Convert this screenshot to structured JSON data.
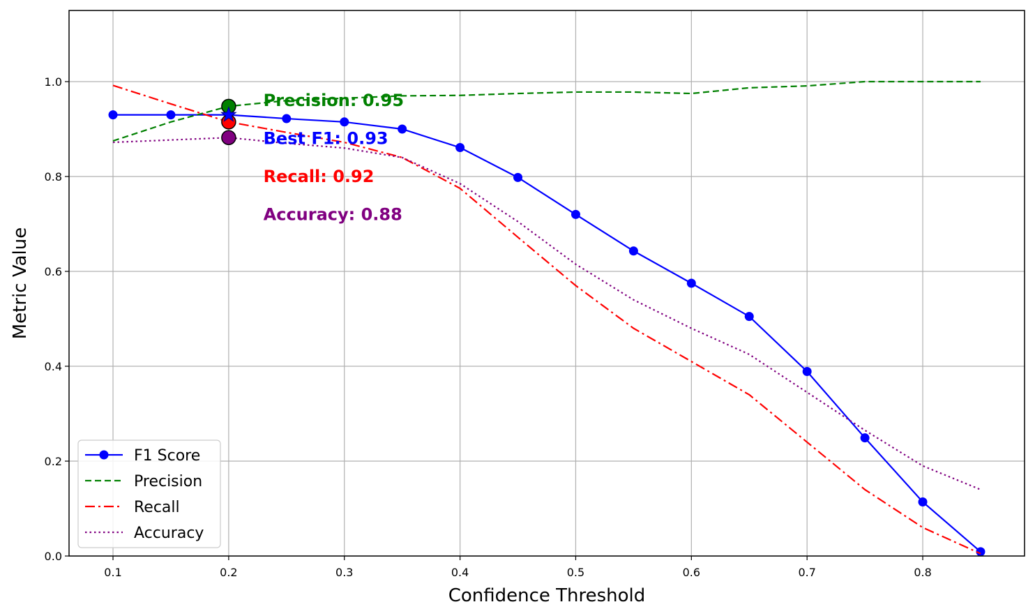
{
  "chart_data": {
    "type": "line",
    "title": "",
    "xlabel": "Confidence Threshold",
    "ylabel": "Metric Value",
    "xlim": [
      0.062,
      0.888
    ],
    "ylim": [
      0.0,
      1.15
    ],
    "x_ticks": [
      "0.1",
      "0.2",
      "0.3",
      "0.4",
      "0.5",
      "0.6",
      "0.7",
      "0.8"
    ],
    "y_ticks": [
      "0.0",
      "0.2",
      "0.4",
      "0.6",
      "0.8",
      "1.0"
    ],
    "grid": true,
    "legend_position": "lower-left",
    "x": [
      0.1,
      0.15,
      0.2,
      0.25,
      0.3,
      0.35,
      0.4,
      0.45,
      0.5,
      0.55,
      0.6,
      0.65,
      0.7,
      0.75,
      0.8,
      0.85
    ],
    "series": [
      {
        "name": "F1 Score",
        "color": "#0000ff",
        "style": "solid",
        "marker": "circle",
        "values": [
          0.93,
          0.93,
          0.93,
          0.922,
          0.915,
          0.9,
          0.861,
          0.798,
          0.72,
          0.643,
          0.575,
          0.505,
          0.389,
          0.249,
          0.114,
          0.009
        ]
      },
      {
        "name": "Precision",
        "color": "#008000",
        "style": "dashed",
        "marker": "none",
        "values": [
          0.875,
          0.915,
          0.948,
          0.96,
          0.965,
          0.97,
          0.971,
          0.975,
          0.978,
          0.978,
          0.975,
          0.987,
          0.991,
          1.0,
          1.0,
          1.0
        ]
      },
      {
        "name": "Recall",
        "color": "#ff0000",
        "style": "dashdot",
        "marker": "none",
        "values": [
          0.992,
          0.953,
          0.915,
          0.893,
          0.872,
          0.84,
          0.775,
          0.672,
          0.57,
          0.48,
          0.41,
          0.34,
          0.24,
          0.14,
          0.06,
          0.005
        ]
      },
      {
        "name": "Accuracy",
        "color": "#800080",
        "style": "dotted",
        "marker": "none",
        "values": [
          0.872,
          0.877,
          0.882,
          0.87,
          0.86,
          0.84,
          0.785,
          0.705,
          0.615,
          0.54,
          0.48,
          0.425,
          0.345,
          0.265,
          0.19,
          0.14
        ]
      }
    ],
    "highlight_points": [
      {
        "series": "Precision",
        "x": 0.2,
        "y": 0.948,
        "color": "#008000",
        "marker": "circle"
      },
      {
        "series": "Recall",
        "x": 0.2,
        "y": 0.915,
        "color": "#ff0000",
        "marker": "circle"
      },
      {
        "series": "Accuracy",
        "x": 0.2,
        "y": 0.882,
        "color": "#800080",
        "marker": "circle"
      },
      {
        "series": "F1 Score",
        "x": 0.2,
        "y": 0.93,
        "color": "#0000ff",
        "marker": "star"
      }
    ],
    "annotations": [
      {
        "text": "Precision: 0.95",
        "x": 0.23,
        "y": 0.96,
        "color": "#008000"
      },
      {
        "text": "Best F1: 0.93",
        "x": 0.23,
        "y": 0.88,
        "color": "#0000ff"
      },
      {
        "text": "Recall: 0.92",
        "x": 0.23,
        "y": 0.8,
        "color": "#ff0000"
      },
      {
        "text": "Accuracy: 0.88",
        "x": 0.23,
        "y": 0.72,
        "color": "#800080"
      }
    ]
  }
}
